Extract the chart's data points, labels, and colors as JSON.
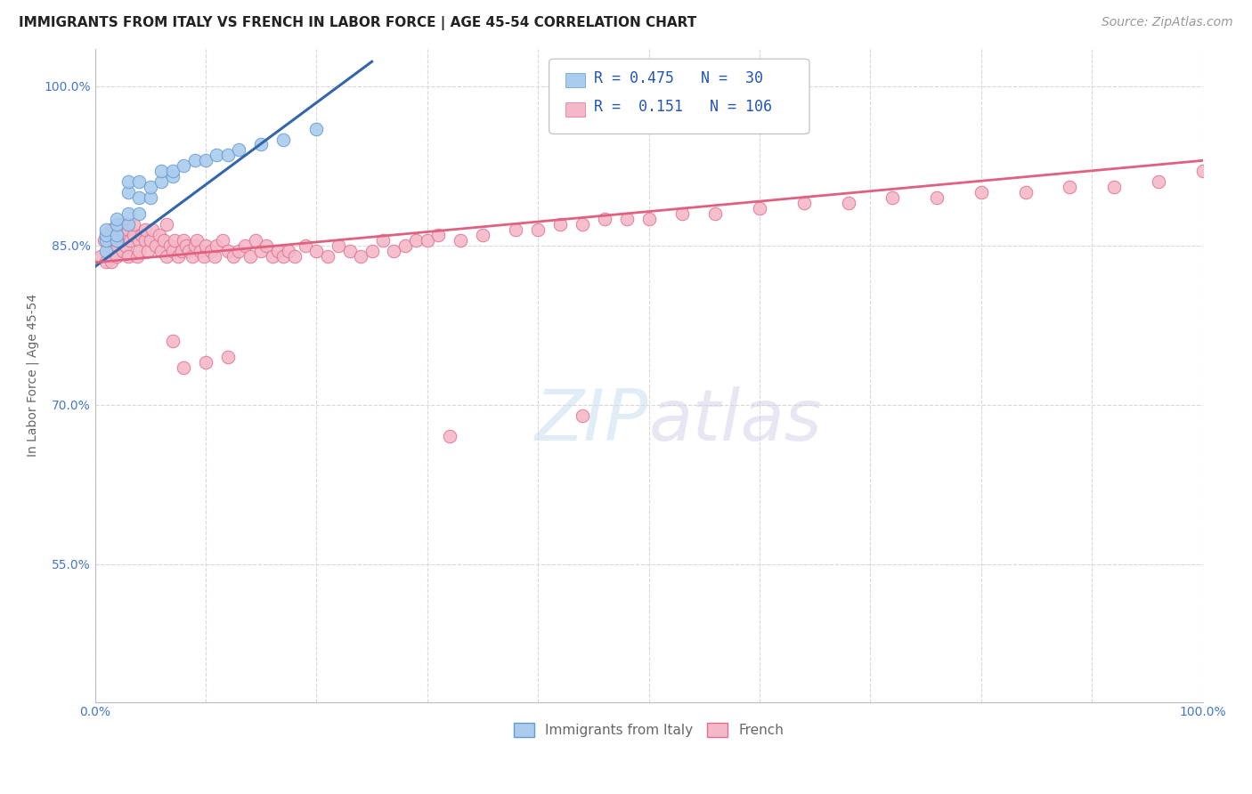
{
  "title": "IMMIGRANTS FROM ITALY VS FRENCH IN LABOR FORCE | AGE 45-54 CORRELATION CHART",
  "source": "Source: ZipAtlas.com",
  "ylabel": "In Labor Force | Age 45-54",
  "xlim": [
    0.0,
    1.0
  ],
  "ylim": [
    0.42,
    1.035
  ],
  "ytick_values": [
    0.55,
    0.7,
    0.85,
    1.0
  ],
  "ytick_labels": [
    "55.0%",
    "70.0%",
    "85.0%",
    "100.0%"
  ],
  "xtick_show": [
    "0.0%",
    "100.0%"
  ],
  "grid_color": "#d8d8d8",
  "background_color": "#ffffff",
  "italy_color": "#aaccee",
  "french_color": "#f4b8c8",
  "italy_edge_color": "#6699cc",
  "french_edge_color": "#e07090",
  "italy_line_color": "#3366aa",
  "french_line_color": "#e06080",
  "italy_r": 0.475,
  "italy_n": 30,
  "french_r": 0.151,
  "french_n": 106,
  "italy_scatter_x": [
    0.01,
    0.01,
    0.01,
    0.01,
    0.02,
    0.02,
    0.02,
    0.02,
    0.03,
    0.03,
    0.03,
    0.03,
    0.04,
    0.04,
    0.04,
    0.05,
    0.05,
    0.06,
    0.06,
    0.07,
    0.07,
    0.08,
    0.09,
    0.1,
    0.11,
    0.12,
    0.13,
    0.15,
    0.17,
    0.2
  ],
  "italy_scatter_y": [
    0.845,
    0.855,
    0.86,
    0.865,
    0.855,
    0.86,
    0.87,
    0.875,
    0.87,
    0.88,
    0.9,
    0.91,
    0.88,
    0.895,
    0.91,
    0.895,
    0.905,
    0.91,
    0.92,
    0.915,
    0.92,
    0.925,
    0.93,
    0.93,
    0.935,
    0.935,
    0.94,
    0.945,
    0.95,
    0.96
  ],
  "french_scatter_x": [
    0.005,
    0.008,
    0.01,
    0.01,
    0.012,
    0.015,
    0.015,
    0.018,
    0.02,
    0.02,
    0.022,
    0.025,
    0.025,
    0.028,
    0.03,
    0.03,
    0.032,
    0.035,
    0.035,
    0.038,
    0.04,
    0.04,
    0.042,
    0.045,
    0.045,
    0.048,
    0.05,
    0.052,
    0.055,
    0.058,
    0.06,
    0.062,
    0.065,
    0.065,
    0.068,
    0.07,
    0.072,
    0.075,
    0.078,
    0.08,
    0.082,
    0.085,
    0.088,
    0.09,
    0.092,
    0.095,
    0.098,
    0.1,
    0.105,
    0.108,
    0.11,
    0.115,
    0.12,
    0.125,
    0.13,
    0.135,
    0.14,
    0.145,
    0.15,
    0.155,
    0.16,
    0.165,
    0.17,
    0.175,
    0.18,
    0.19,
    0.2,
    0.21,
    0.22,
    0.23,
    0.24,
    0.25,
    0.26,
    0.27,
    0.28,
    0.29,
    0.3,
    0.31,
    0.33,
    0.35,
    0.38,
    0.4,
    0.42,
    0.44,
    0.46,
    0.48,
    0.5,
    0.53,
    0.56,
    0.6,
    0.64,
    0.68,
    0.72,
    0.76,
    0.8,
    0.84,
    0.88,
    0.92,
    0.96,
    1.0,
    0.07,
    0.08,
    0.1,
    0.12,
    0.32,
    0.44
  ],
  "french_scatter_y": [
    0.84,
    0.855,
    0.835,
    0.86,
    0.85,
    0.865,
    0.835,
    0.845,
    0.855,
    0.84,
    0.87,
    0.845,
    0.86,
    0.85,
    0.84,
    0.865,
    0.855,
    0.86,
    0.87,
    0.84,
    0.855,
    0.845,
    0.86,
    0.855,
    0.865,
    0.845,
    0.855,
    0.865,
    0.85,
    0.86,
    0.845,
    0.855,
    0.84,
    0.87,
    0.85,
    0.845,
    0.855,
    0.84,
    0.845,
    0.855,
    0.85,
    0.845,
    0.84,
    0.85,
    0.855,
    0.845,
    0.84,
    0.85,
    0.845,
    0.84,
    0.85,
    0.855,
    0.845,
    0.84,
    0.845,
    0.85,
    0.84,
    0.855,
    0.845,
    0.85,
    0.84,
    0.845,
    0.84,
    0.845,
    0.84,
    0.85,
    0.845,
    0.84,
    0.85,
    0.845,
    0.84,
    0.845,
    0.855,
    0.845,
    0.85,
    0.855,
    0.855,
    0.86,
    0.855,
    0.86,
    0.865,
    0.865,
    0.87,
    0.87,
    0.875,
    0.875,
    0.875,
    0.88,
    0.88,
    0.885,
    0.89,
    0.89,
    0.895,
    0.895,
    0.9,
    0.9,
    0.905,
    0.905,
    0.91,
    0.92,
    0.76,
    0.735,
    0.74,
    0.745,
    0.67,
    0.69
  ],
  "title_fontsize": 11,
  "tick_fontsize": 10,
  "legend_fontsize": 12,
  "source_fontsize": 10,
  "watermark_text": "ZIPatlas",
  "legend_label_italy": "Immigrants from Italy",
  "legend_label_french": "French"
}
